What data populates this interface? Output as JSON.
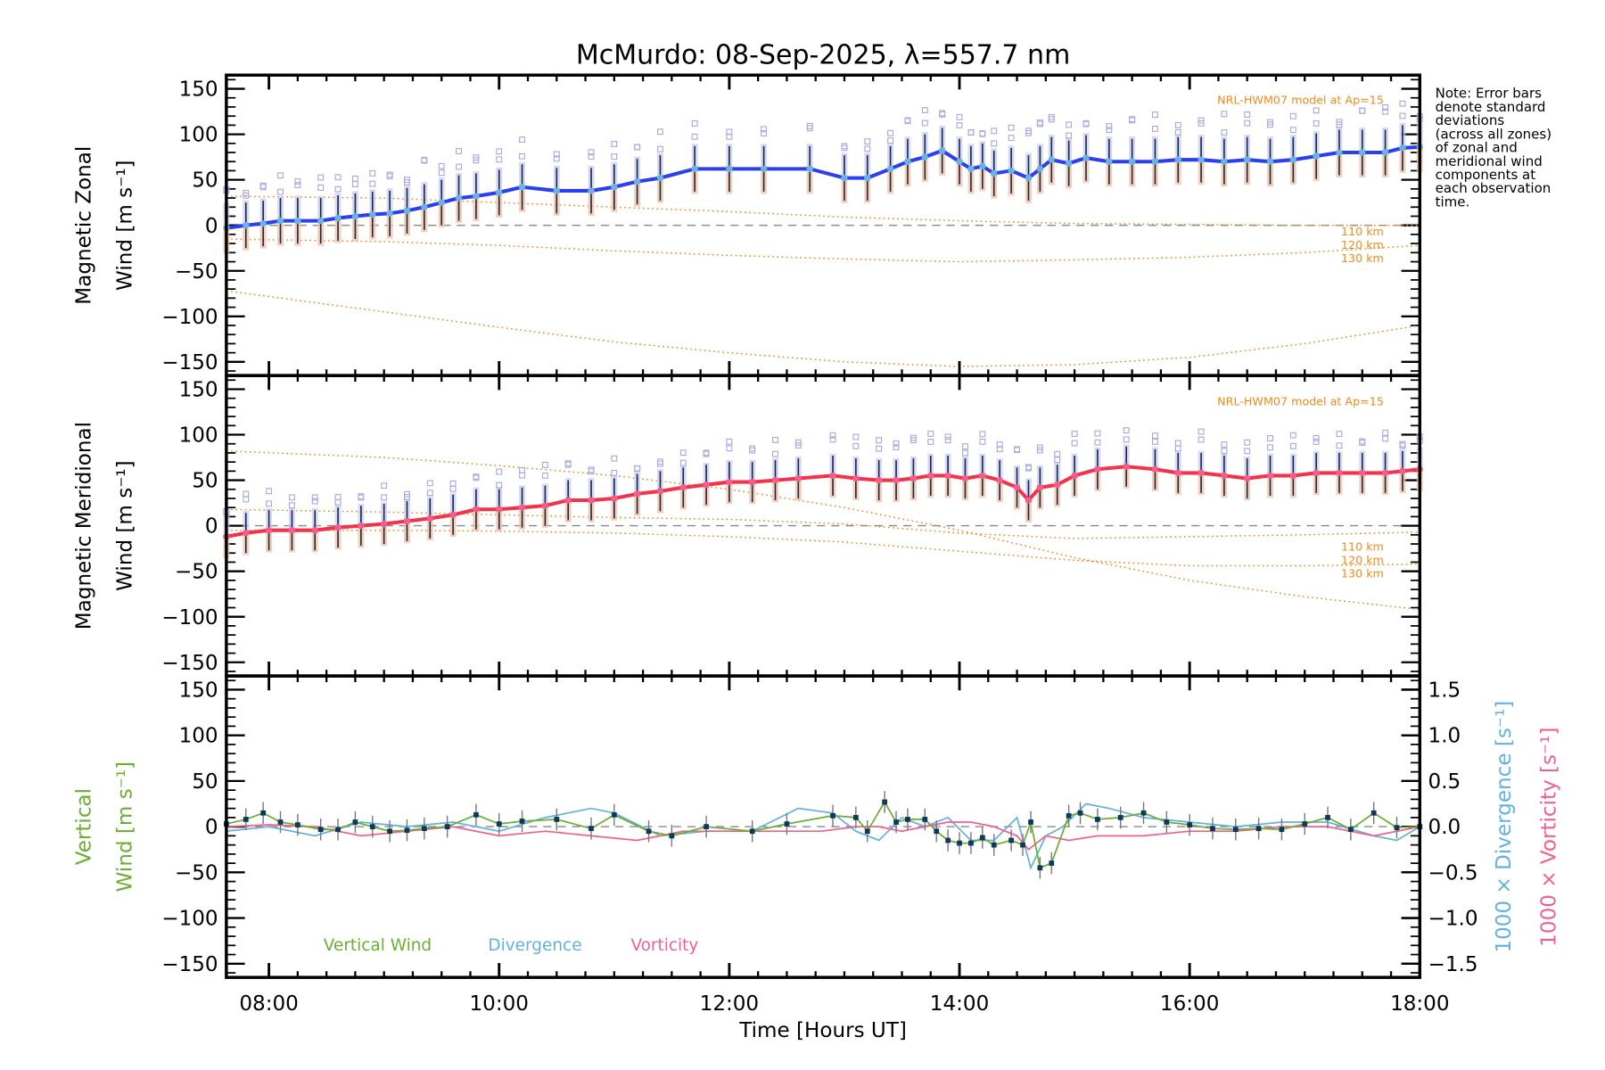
{
  "chart_data": {
    "type": "line",
    "title": "McMurdo: 08-Sep-2025, λ=557.7 nm",
    "xlabel": "Time [Hours UT]",
    "x_ticks": [
      "08:00",
      "10:00",
      "12:00",
      "14:00",
      "16:00",
      "18:00"
    ],
    "xlim_hours": [
      7.63,
      18.0
    ],
    "note": [
      "Note: Error bars",
      "denote standard",
      "deviations",
      "(across all zones)",
      "of zonal and",
      "meridional wind",
      "components at",
      "each observation",
      "time."
    ],
    "model_label": "NRL-HWM07 model at Ap=15",
    "model_altitudes": [
      "110 km",
      "120 km",
      "130 km"
    ],
    "colors": {
      "zonal": "#2b3ff0",
      "meridional": "#f2334a",
      "model": "#f08a1c",
      "vertical": "#6aae32",
      "divergence": "#63b2dc",
      "vorticity": "#f2608f",
      "marker_zonal": "#6ab3e0",
      "marker_meridional": "#f25e8c",
      "errorbar": "#0d2b4a"
    },
    "panels": [
      {
        "name": "zonal",
        "ylabel_line1": "Magnetic Zonal",
        "ylabel_line2": "Wind [m s⁻¹]",
        "ylim": [
          -165,
          165
        ],
        "y_ticks": [
          "150",
          "100",
          "50",
          "0",
          "−50",
          "−100",
          "−150"
        ],
        "series": {
          "t": [
            7.63,
            7.8,
            7.95,
            8.1,
            8.25,
            8.45,
            8.6,
            8.75,
            8.9,
            9.05,
            9.2,
            9.35,
            9.5,
            9.65,
            9.8,
            10.0,
            10.2,
            10.5,
            10.8,
            11.0,
            11.2,
            11.4,
            11.7,
            12.0,
            12.3,
            12.7,
            13.0,
            13.2,
            13.4,
            13.55,
            13.7,
            13.85,
            14.0,
            14.1,
            14.2,
            14.3,
            14.45,
            14.6,
            14.7,
            14.8,
            14.95,
            15.1,
            15.3,
            15.5,
            15.7,
            15.9,
            16.1,
            16.3,
            16.5,
            16.7,
            16.9,
            17.1,
            17.3,
            17.5,
            17.7,
            17.85,
            18.0
          ],
          "v": [
            -3,
            0,
            2,
            5,
            5,
            5,
            8,
            10,
            12,
            13,
            16,
            20,
            25,
            30,
            32,
            36,
            42,
            38,
            38,
            42,
            48,
            52,
            62,
            62,
            62,
            62,
            52,
            52,
            62,
            70,
            75,
            82,
            70,
            62,
            65,
            57,
            60,
            52,
            62,
            72,
            68,
            74,
            70,
            70,
            70,
            72,
            72,
            70,
            72,
            70,
            72,
            76,
            80,
            80,
            80,
            85,
            86
          ]
        },
        "errorbar_sd": 25,
        "model_curves": [
          {
            "altitude": "110 km",
            "t": [
              7.63,
              9,
              10,
              11,
              12,
              13,
              14,
              15,
              16,
              17,
              18
            ],
            "v": [
              32,
              30,
              25,
              20,
              15,
              9,
              5,
              2,
              1,
              0,
              0
            ]
          },
          {
            "altitude": "120 km",
            "t": [
              7.63,
              9,
              10,
              11,
              12,
              13,
              14,
              15,
              16,
              17,
              18
            ],
            "v": [
              -15,
              -18,
              -22,
              -28,
              -33,
              -37,
              -40,
              -38,
              -35,
              -30,
              -22
            ]
          },
          {
            "altitude": "130 km",
            "t": [
              7.63,
              9,
              10,
              11,
              12,
              13,
              14,
              15,
              16,
              17,
              18
            ],
            "v": [
              -72,
              -95,
              -112,
              -128,
              -140,
              -150,
              -155,
              -153,
              -145,
              -130,
              -110
            ]
          }
        ]
      },
      {
        "name": "meridional",
        "ylabel_line1": "Magnetic Meridional",
        "ylabel_line2": "Wind [m s⁻¹]",
        "ylim": [
          -165,
          165
        ],
        "y_ticks": [
          "150",
          "100",
          "50",
          "0",
          "−50",
          "−100",
          "−150"
        ],
        "series": {
          "t": [
            7.63,
            7.8,
            8.0,
            8.2,
            8.4,
            8.6,
            8.8,
            9.0,
            9.2,
            9.4,
            9.6,
            9.8,
            10.0,
            10.2,
            10.4,
            10.6,
            10.8,
            11.0,
            11.2,
            11.4,
            11.6,
            11.8,
            12.0,
            12.2,
            12.4,
            12.6,
            12.9,
            13.1,
            13.3,
            13.45,
            13.6,
            13.75,
            13.9,
            14.05,
            14.2,
            14.35,
            14.5,
            14.6,
            14.7,
            14.85,
            15.0,
            15.2,
            15.45,
            15.7,
            15.9,
            16.1,
            16.3,
            16.5,
            16.7,
            16.9,
            17.1,
            17.3,
            17.5,
            17.7,
            17.85,
            18.0
          ],
          "v": [
            -12,
            -8,
            -5,
            -5,
            -5,
            -2,
            0,
            2,
            5,
            8,
            12,
            18,
            18,
            20,
            22,
            28,
            28,
            30,
            35,
            38,
            42,
            45,
            48,
            48,
            50,
            52,
            55,
            52,
            50,
            50,
            52,
            55,
            55,
            52,
            55,
            50,
            42,
            28,
            42,
            45,
            55,
            62,
            65,
            62,
            58,
            58,
            55,
            52,
            55,
            55,
            58,
            58,
            58,
            58,
            60,
            62
          ]
        },
        "errorbar_sd": 22,
        "model_curves": [
          {
            "altitude": "110 km",
            "t": [
              7.63,
              9,
              10,
              11,
              12,
              13,
              14,
              15,
              16,
              17,
              18
            ],
            "v": [
              18,
              15,
              12,
              9,
              7,
              2,
              -8,
              -14,
              -12,
              -10,
              -7
            ]
          },
          {
            "altitude": "120 km",
            "t": [
              7.63,
              9,
              10,
              11,
              12,
              13,
              14,
              15,
              16,
              17,
              18
            ],
            "v": [
              -5,
              -5,
              -6,
              -8,
              -12,
              -18,
              -28,
              -38,
              -44,
              -44,
              -42
            ]
          },
          {
            "altitude": "130 km",
            "t": [
              7.63,
              9,
              10,
              11,
              12,
              13,
              14,
              15,
              16,
              17,
              18
            ],
            "v": [
              82,
              75,
              66,
              55,
              40,
              20,
              -5,
              -35,
              -60,
              -78,
              -92
            ]
          }
        ]
      },
      {
        "name": "vertical",
        "ylabel_line1": "Vertical",
        "ylabel_line2": "Wind [m s⁻¹]",
        "ylim": [
          -165,
          165
        ],
        "y_ticks": [
          "150",
          "100",
          "50",
          "0",
          "−50",
          "−100",
          "−150"
        ],
        "y2_ticks": [
          "1.5",
          "1.0",
          "0.5",
          "0.0",
          "−0.5",
          "−1.0",
          "−1.5"
        ],
        "y2lim": [
          -1.65,
          1.65
        ],
        "y2label_divergence": "1000 × Divergence [s⁻¹]",
        "y2label_vorticity": "1000 × Vorticity [s⁻¹]",
        "legend": [
          "Vertical Wind",
          "Divergence",
          "Vorticity"
        ],
        "vertical_wind": {
          "t": [
            7.63,
            7.8,
            7.95,
            8.1,
            8.25,
            8.45,
            8.6,
            8.75,
            8.9,
            9.05,
            9.2,
            9.35,
            9.55,
            9.8,
            10.0,
            10.2,
            10.5,
            10.8,
            11.0,
            11.3,
            11.5,
            11.8,
            12.2,
            12.5,
            12.9,
            13.1,
            13.2,
            13.35,
            13.45,
            13.55,
            13.7,
            13.8,
            13.9,
            14.0,
            14.1,
            14.2,
            14.3,
            14.45,
            14.55,
            14.62,
            14.7,
            14.8,
            14.95,
            15.05,
            15.2,
            15.4,
            15.6,
            15.8,
            16.0,
            16.2,
            16.4,
            16.6,
            16.8,
            17.0,
            17.2,
            17.4,
            17.6,
            17.8,
            18.0
          ],
          "v": [
            3,
            8,
            15,
            5,
            2,
            -3,
            -3,
            5,
            0,
            -5,
            -4,
            -2,
            0,
            13,
            3,
            6,
            8,
            -2,
            13,
            -5,
            -10,
            0,
            -5,
            3,
            12,
            10,
            -5,
            27,
            5,
            8,
            8,
            -5,
            -15,
            -18,
            -18,
            -12,
            -20,
            -15,
            -20,
            5,
            -45,
            -40,
            12,
            15,
            8,
            10,
            15,
            5,
            2,
            -2,
            -3,
            -2,
            -3,
            3,
            10,
            -3,
            15,
            -1,
            0
          ]
        },
        "divergence": {
          "t": [
            7.63,
            8.0,
            8.4,
            8.8,
            9.2,
            9.6,
            10.0,
            10.4,
            10.8,
            11.0,
            11.4,
            11.8,
            12.2,
            12.6,
            12.9,
            13.1,
            13.3,
            13.5,
            13.7,
            13.9,
            14.1,
            14.3,
            14.5,
            14.62,
            14.75,
            14.9,
            15.1,
            15.3,
            15.6,
            16.0,
            16.4,
            16.8,
            17.2,
            17.6,
            17.8,
            18.0
          ],
          "v": [
            -0.05,
            0.0,
            -0.1,
            0.05,
            0.0,
            0.05,
            -0.05,
            0.1,
            0.2,
            0.15,
            -0.1,
            -0.05,
            -0.05,
            0.2,
            0.15,
            -0.05,
            -0.15,
            0.1,
            0.0,
            0.1,
            -0.15,
            -0.15,
            0.1,
            -0.45,
            -0.1,
            0.0,
            0.25,
            0.2,
            0.1,
            0.05,
            0.0,
            0.05,
            0.05,
            -0.1,
            -0.15,
            0.0
          ]
        },
        "vorticity": {
          "t": [
            7.63,
            8.0,
            8.4,
            8.8,
            9.2,
            9.6,
            10.0,
            10.4,
            10.8,
            11.2,
            11.6,
            12.0,
            12.4,
            12.8,
            13.1,
            13.3,
            13.5,
            13.7,
            13.9,
            14.1,
            14.3,
            14.5,
            14.6,
            14.75,
            14.95,
            15.2,
            15.6,
            16.0,
            16.4,
            16.8,
            17.2,
            17.6,
            18.0
          ],
          "v": [
            0.0,
            0.02,
            0.0,
            -0.1,
            -0.05,
            0.0,
            -0.1,
            -0.05,
            -0.1,
            -0.15,
            -0.05,
            -0.05,
            -0.05,
            -0.05,
            0.0,
            0.0,
            -0.05,
            0.0,
            0.05,
            0.05,
            0.0,
            -0.1,
            -0.25,
            -0.1,
            -0.15,
            -0.1,
            -0.1,
            -0.05,
            -0.05,
            0.0,
            0.0,
            -0.1,
            0.0
          ]
        }
      }
    ]
  }
}
